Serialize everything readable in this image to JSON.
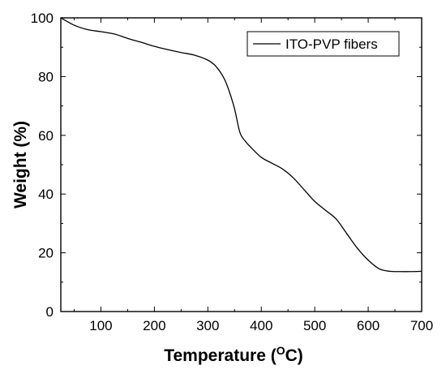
{
  "chart_data": {
    "type": "line",
    "title": "",
    "xlabel": "Temperature (",
    "xlabel_unit_superscript": "O",
    "xlabel_unit_suffix": "C)",
    "ylabel": "Weight (%)",
    "xlim": [
      25,
      700
    ],
    "ylim": [
      0,
      100
    ],
    "xticks": [
      100,
      200,
      300,
      400,
      500,
      600,
      700
    ],
    "yticks": [
      0,
      20,
      40,
      60,
      80,
      100
    ],
    "grid": false,
    "legend_position": "top-right",
    "series": [
      {
        "name": "ITO-PVP fibers",
        "color": "#000000",
        "x": [
          25,
          50,
          75,
          100,
          125,
          150,
          175,
          200,
          225,
          250,
          275,
          300,
          315,
          330,
          340,
          350,
          360,
          370,
          380,
          400,
          420,
          440,
          460,
          480,
          500,
          520,
          540,
          560,
          580,
          600,
          620,
          640,
          660,
          680,
          700
        ],
        "y": [
          100,
          97.5,
          96,
          95.3,
          94.5,
          93,
          91.7,
          90.3,
          89.2,
          88.2,
          87.3,
          85.6,
          83.5,
          79.5,
          75,
          69,
          61,
          58,
          56,
          52.5,
          50.5,
          48.5,
          45.5,
          41.5,
          37.5,
          34.5,
          31.5,
          26.5,
          21.5,
          17.5,
          14.6,
          13.7,
          13.6,
          13.6,
          13.7
        ]
      }
    ]
  }
}
